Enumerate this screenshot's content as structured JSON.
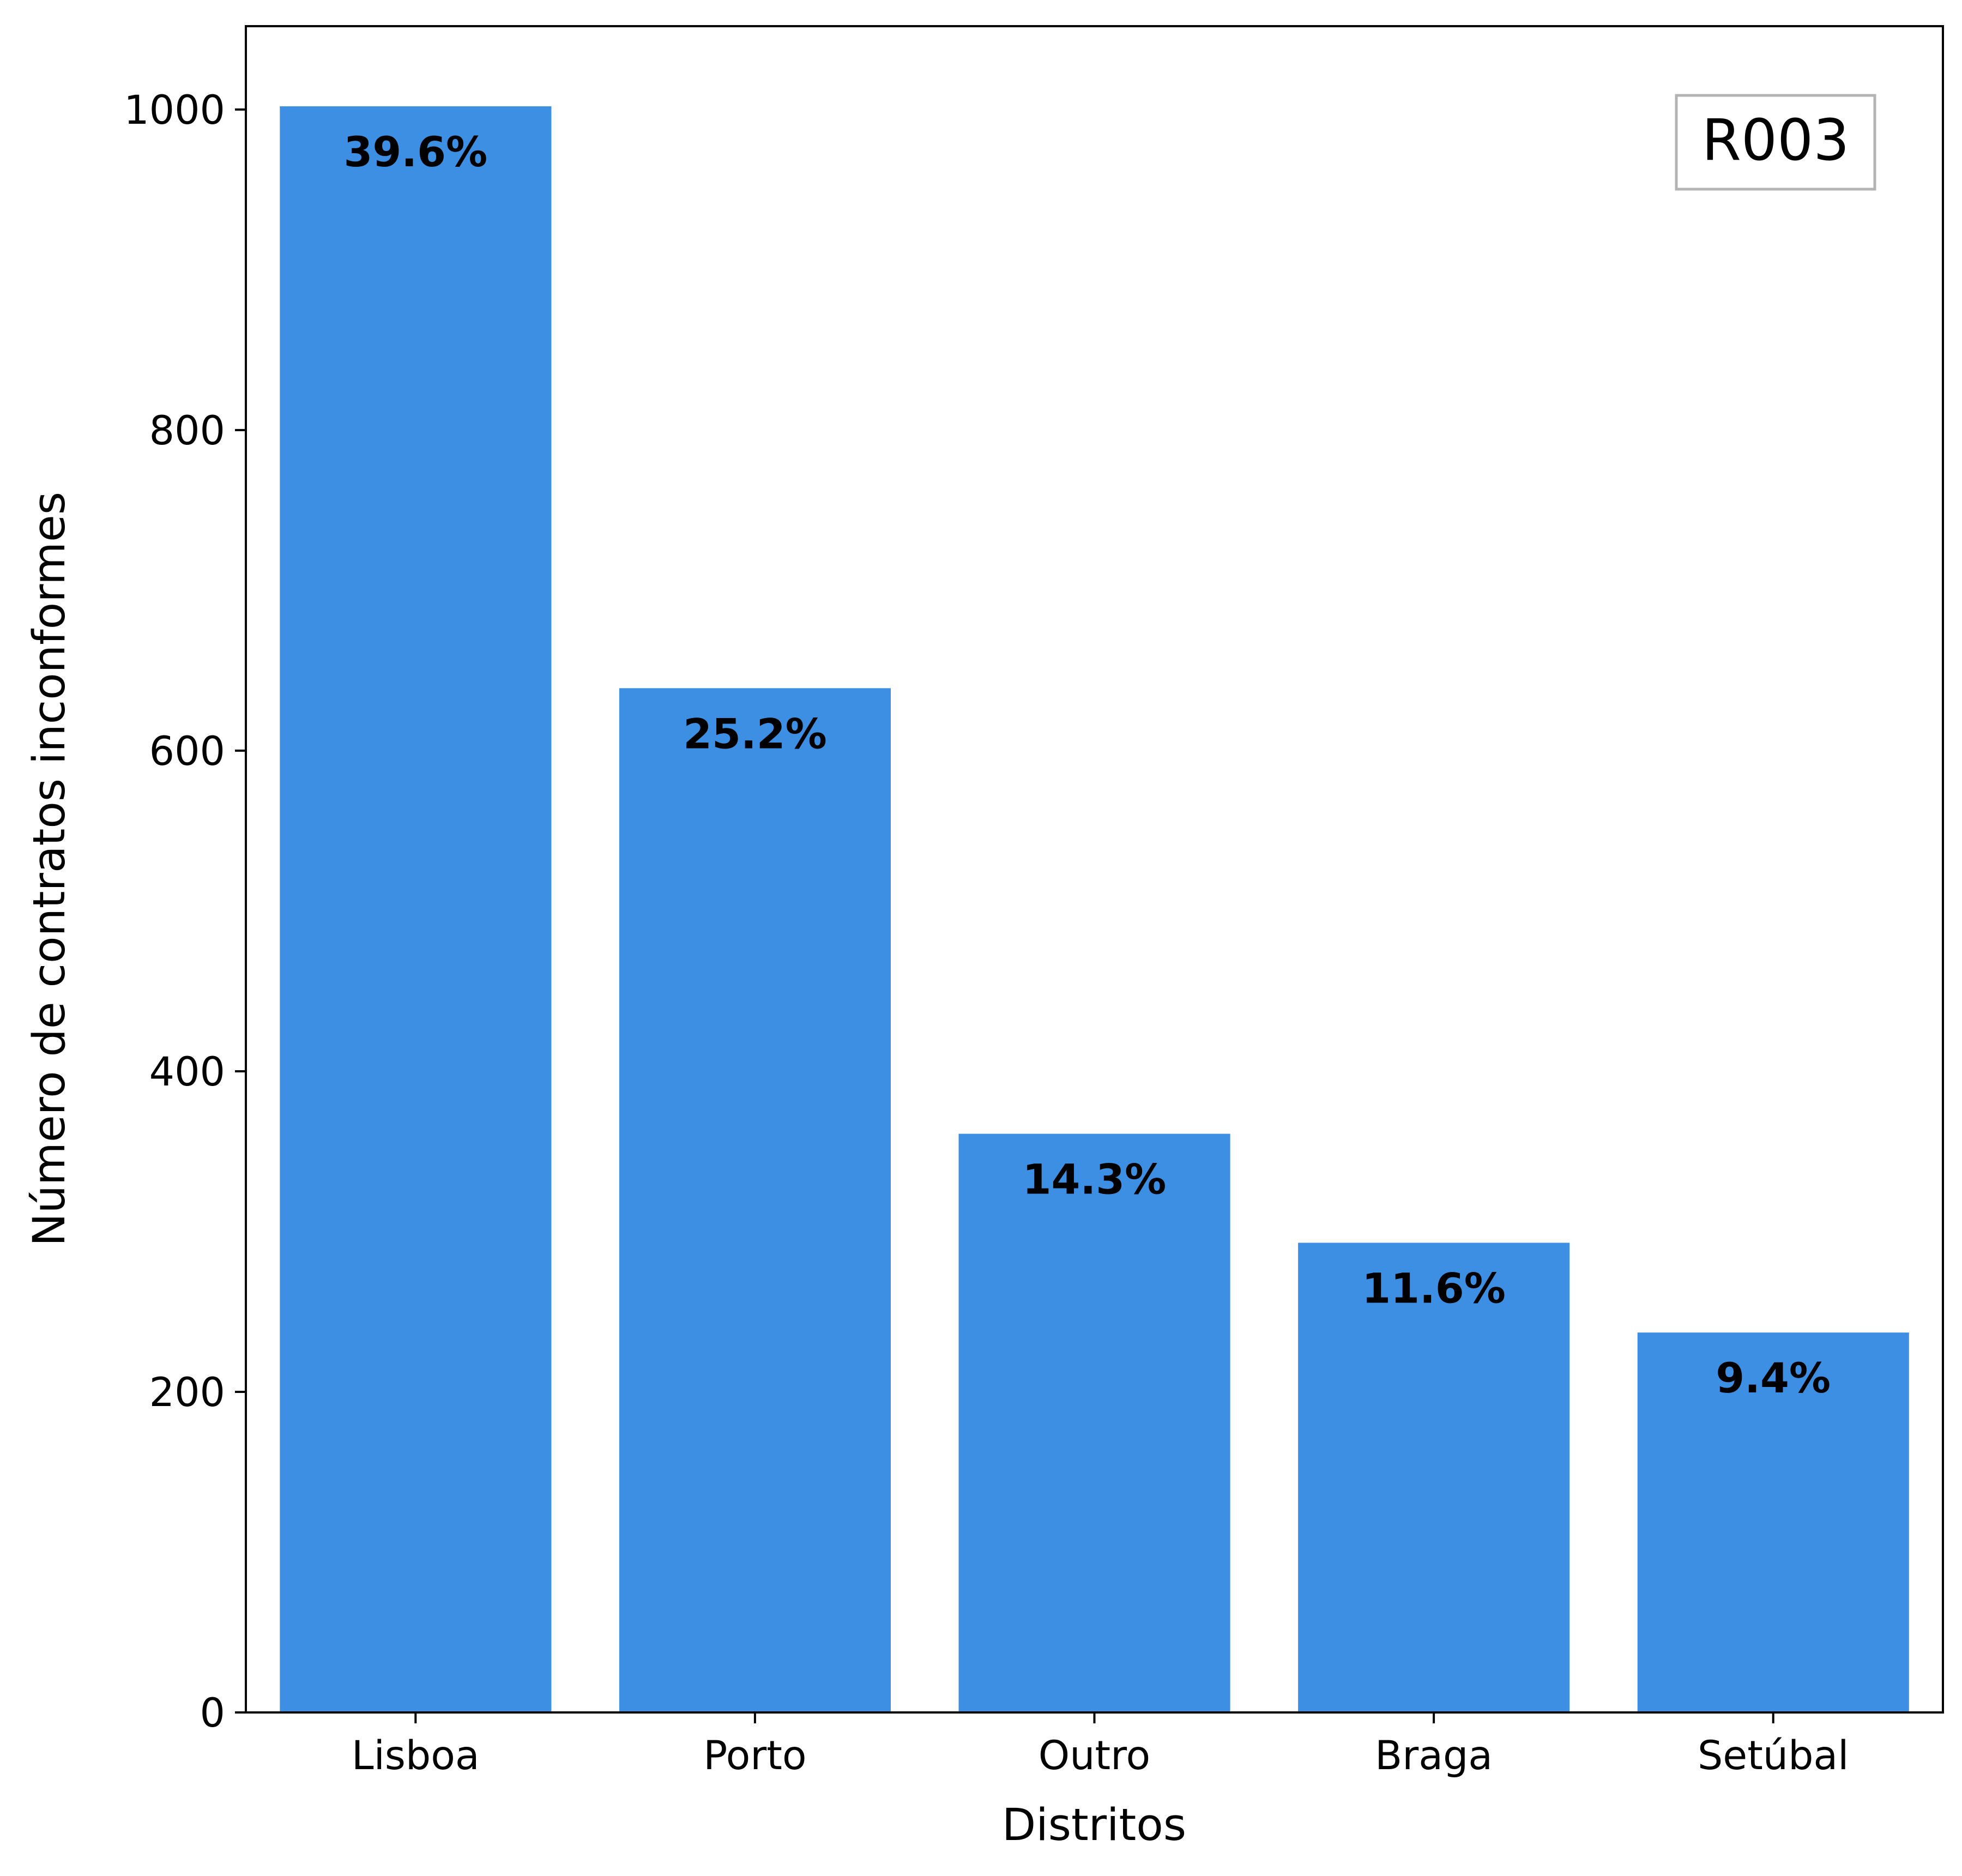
{
  "chart_data": {
    "type": "bar",
    "title": "",
    "xlabel": "Distritos",
    "ylabel": "Número de contratos inconformes",
    "categories": [
      "Lisboa",
      "Porto",
      "Outro",
      "Braga",
      "Setúbal"
    ],
    "values": [
      1002,
      639,
      361,
      293,
      237
    ],
    "bar_labels": [
      "39.6%",
      "25.2%",
      "14.3%",
      "11.6%",
      "9.4%"
    ],
    "ylim": [
      0,
      1052
    ],
    "yticks": [
      0,
      200,
      400,
      600,
      800,
      1000
    ],
    "ytick_labels": [
      "0",
      "200",
      "400",
      "600",
      "800",
      "1000"
    ],
    "grid": false,
    "legend": "none",
    "bar_color": "#3d8fe3",
    "annotation_box": {
      "text": "R003",
      "placement": "top-right"
    }
  }
}
